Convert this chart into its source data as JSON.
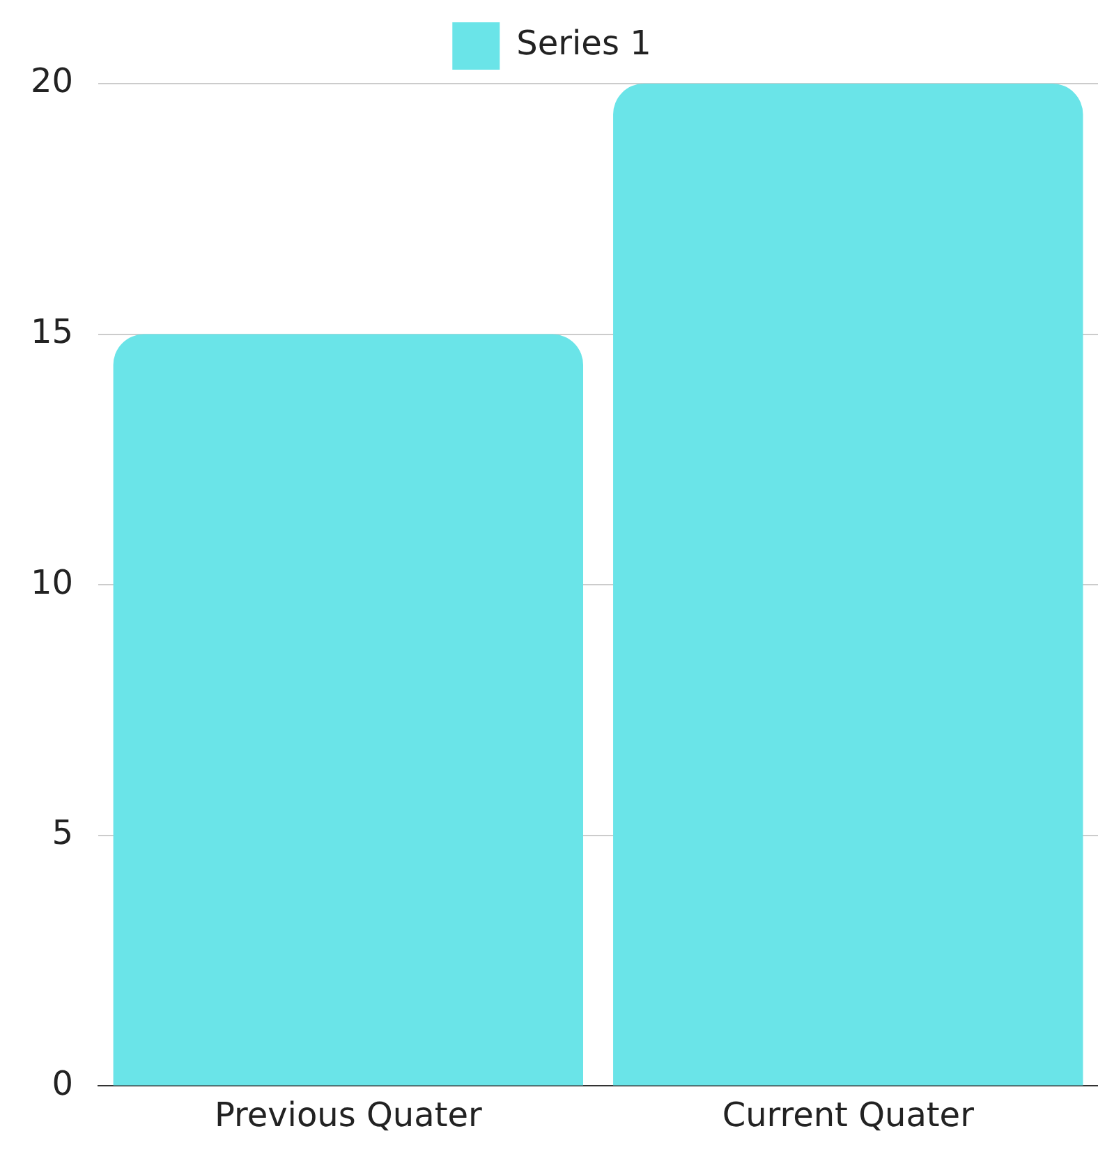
{
  "chart_data": {
    "type": "bar",
    "categories": [
      "Previous Quater",
      "Current Quater"
    ],
    "series": [
      {
        "name": "Series 1",
        "color": "#6ae4e8",
        "values": [
          15,
          20
        ]
      }
    ],
    "ylim": [
      0,
      20
    ],
    "yticks": [
      0,
      5,
      10,
      15,
      20
    ],
    "grid": "y",
    "legend": "top"
  }
}
